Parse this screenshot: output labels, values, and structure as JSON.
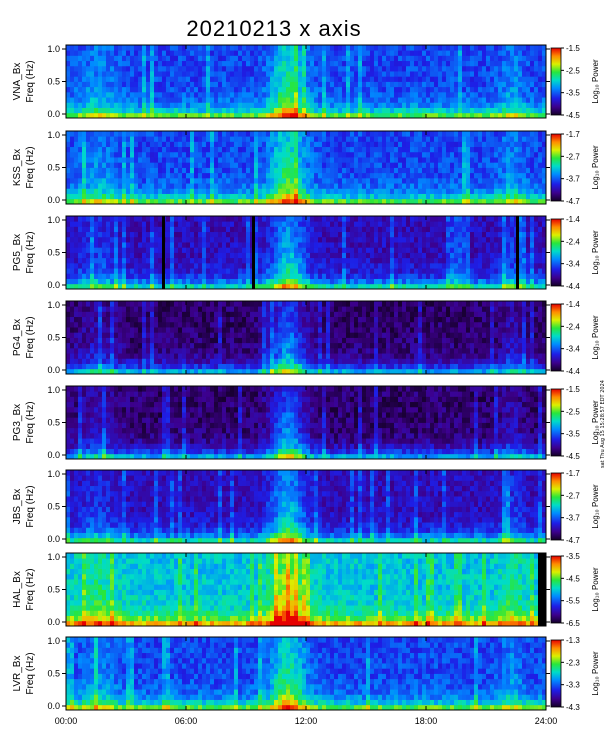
{
  "title": "20210213 x axis",
  "side_text": "sat Thu Aug 15 15:28:57 EDT 2024",
  "chart_data": [
    {
      "type": "heatmap",
      "station": "VNA",
      "ylabel": [
        "VNA_Bx",
        "Freq (Hz)"
      ],
      "yticks": [
        "1.0",
        "0.5",
        "0.0"
      ],
      "ylim": [
        0,
        1.0
      ],
      "colorbar_title": "Log₁₀ Power",
      "colorbar_ticks": [
        "-1.5",
        "-2.5",
        "-3.5",
        "-4.5"
      ],
      "clim": [
        -4.5,
        -1.5
      ],
      "background": "blue",
      "gaps": []
    },
    {
      "type": "heatmap",
      "station": "KSS",
      "ylabel": [
        "KSS_Bx",
        "Freq (Hz)"
      ],
      "yticks": [
        "1.0",
        "0.5",
        "0.0"
      ],
      "ylim": [
        0,
        1.0
      ],
      "colorbar_title": "Log₁₀ Power",
      "colorbar_ticks": [
        "-1.7",
        "-2.7",
        "-3.7",
        "-4.7"
      ],
      "clim": [
        -4.7,
        -1.7
      ],
      "background": "blue",
      "gaps": []
    },
    {
      "type": "heatmap",
      "station": "PG5",
      "ylabel": [
        "PG5_Bx",
        "Freq (Hz)"
      ],
      "yticks": [
        "1.0",
        "0.5",
        "0.0"
      ],
      "ylim": [
        0,
        1.0
      ],
      "colorbar_title": "Log₁₀ Power",
      "colorbar_ticks": [
        "-1.4",
        "-2.4",
        "-3.4",
        "-4.4"
      ],
      "clim": [
        -4.4,
        -1.4
      ],
      "background": "dark",
      "gaps": [
        4.8,
        9.3,
        22.5
      ]
    },
    {
      "type": "heatmap",
      "station": "PG4",
      "ylabel": [
        "PG4_Bx",
        "Freq (Hz)"
      ],
      "yticks": [
        "1.0",
        "0.5",
        "0.0"
      ],
      "ylim": [
        0,
        1.0
      ],
      "colorbar_title": "Log₁₀ Power",
      "colorbar_ticks": [
        "-1.4",
        "-2.4",
        "-3.4",
        "-4.4"
      ],
      "clim": [
        -4.4,
        -1.4
      ],
      "background": "black",
      "gaps": []
    },
    {
      "type": "heatmap",
      "station": "PG3",
      "ylabel": [
        "PG3_Bx",
        "Freq (Hz)"
      ],
      "yticks": [
        "1.0",
        "0.5",
        "0.0"
      ],
      "ylim": [
        0,
        1.0
      ],
      "colorbar_title": "Log₁₀ Power",
      "colorbar_ticks": [
        "-1.5",
        "-2.5",
        "-3.5",
        "-4.5"
      ],
      "clim": [
        -4.5,
        -1.5
      ],
      "background": "black",
      "gaps": []
    },
    {
      "type": "heatmap",
      "station": "JBS",
      "ylabel": [
        "JBS_Bx",
        "Freq (Hz)"
      ],
      "yticks": [
        "1.0",
        "0.5",
        "0.0"
      ],
      "ylim": [
        0,
        1.0
      ],
      "colorbar_title": "Log₁₀ Power",
      "colorbar_ticks": [
        "-1.7",
        "-2.7",
        "-3.7",
        "-4.7"
      ],
      "clim": [
        -4.7,
        -1.7
      ],
      "background": "dark",
      "gaps": []
    },
    {
      "type": "heatmap",
      "station": "HAL",
      "ylabel": [
        "HAL_Bx",
        "Freq (Hz)"
      ],
      "yticks": [
        "1.0",
        "0.5",
        "0.0"
      ],
      "ylim": [
        0,
        1.0
      ],
      "colorbar_title": "Log₁₀ Power",
      "colorbar_ticks": [
        "-3.5",
        "-4.5",
        "-5.5",
        "-6.5"
      ],
      "clim": [
        -6.5,
        -3.5
      ],
      "background": "bright",
      "gaps": [
        23.6
      ]
    },
    {
      "type": "heatmap",
      "station": "LVR",
      "ylabel": [
        "LVR_Bx",
        "Freq (Hz)"
      ],
      "yticks": [
        "1.0",
        "0.5",
        "0.0"
      ],
      "ylim": [
        0,
        1.0
      ],
      "colorbar_title": "Log₁₀ Power",
      "colorbar_ticks": [
        "-1.3",
        "-2.3",
        "-3.3",
        "-4.3"
      ],
      "clim": [
        -4.3,
        -1.3
      ],
      "background": "blue",
      "gaps": []
    }
  ],
  "xaxis": {
    "ticks": [
      "00:00",
      "06:00",
      "12:00",
      "18:00",
      "24:00"
    ],
    "xlim": [
      0,
      24
    ]
  }
}
